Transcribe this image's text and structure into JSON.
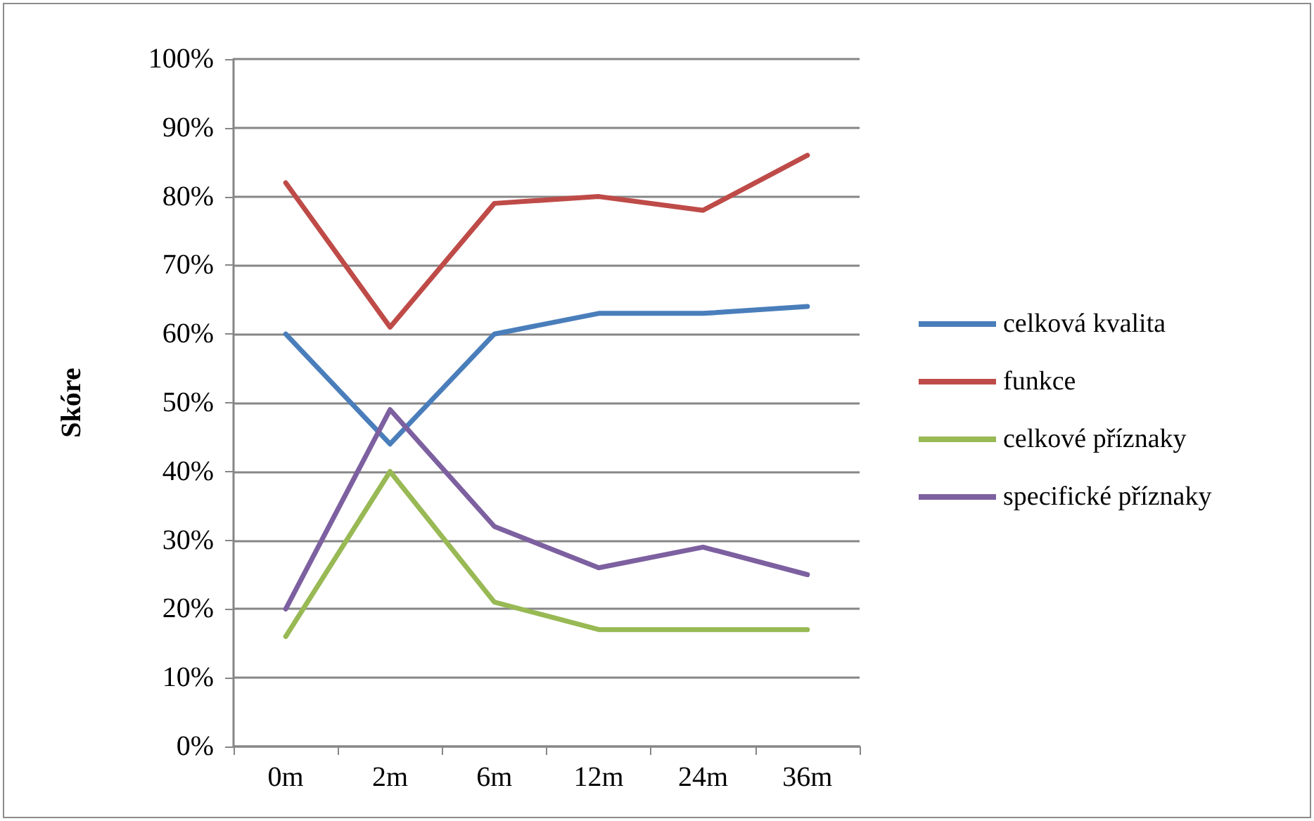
{
  "chart_data": {
    "type": "line",
    "ylabel": "Skóre",
    "categories": [
      "0m",
      "2m",
      "6m",
      "12m",
      "24m",
      "36m"
    ],
    "series": [
      {
        "name": "celková kvalita",
        "color": "#4a7ebb",
        "values": [
          60,
          44,
          60,
          63,
          63,
          64
        ]
      },
      {
        "name": "funkce",
        "color": "#be4b48",
        "values": [
          82,
          61,
          79,
          80,
          78,
          86
        ]
      },
      {
        "name": "celkové příznaky",
        "color": "#98b954",
        "values": [
          16,
          40,
          21,
          17,
          17,
          17
        ]
      },
      {
        "name": "specifické příznaky",
        "color": "#7d60a0",
        "values": [
          20,
          49,
          32,
          26,
          29,
          25
        ]
      }
    ],
    "ylim": [
      0,
      100
    ],
    "yticks": [
      {
        "value": 0,
        "label": "0%"
      },
      {
        "value": 10,
        "label": "10%"
      },
      {
        "value": 20,
        "label": "20%"
      },
      {
        "value": 30,
        "label": "30%"
      },
      {
        "value": 40,
        "label": "40%"
      },
      {
        "value": 50,
        "label": "50%"
      },
      {
        "value": 60,
        "label": "60%"
      },
      {
        "value": 70,
        "label": "70%"
      },
      {
        "value": 80,
        "label": "80%"
      },
      {
        "value": 90,
        "label": "90%"
      },
      {
        "value": 100,
        "label": "100%"
      }
    ],
    "grid": "y",
    "legend": "right",
    "marker": "none",
    "line_style": "solid"
  }
}
